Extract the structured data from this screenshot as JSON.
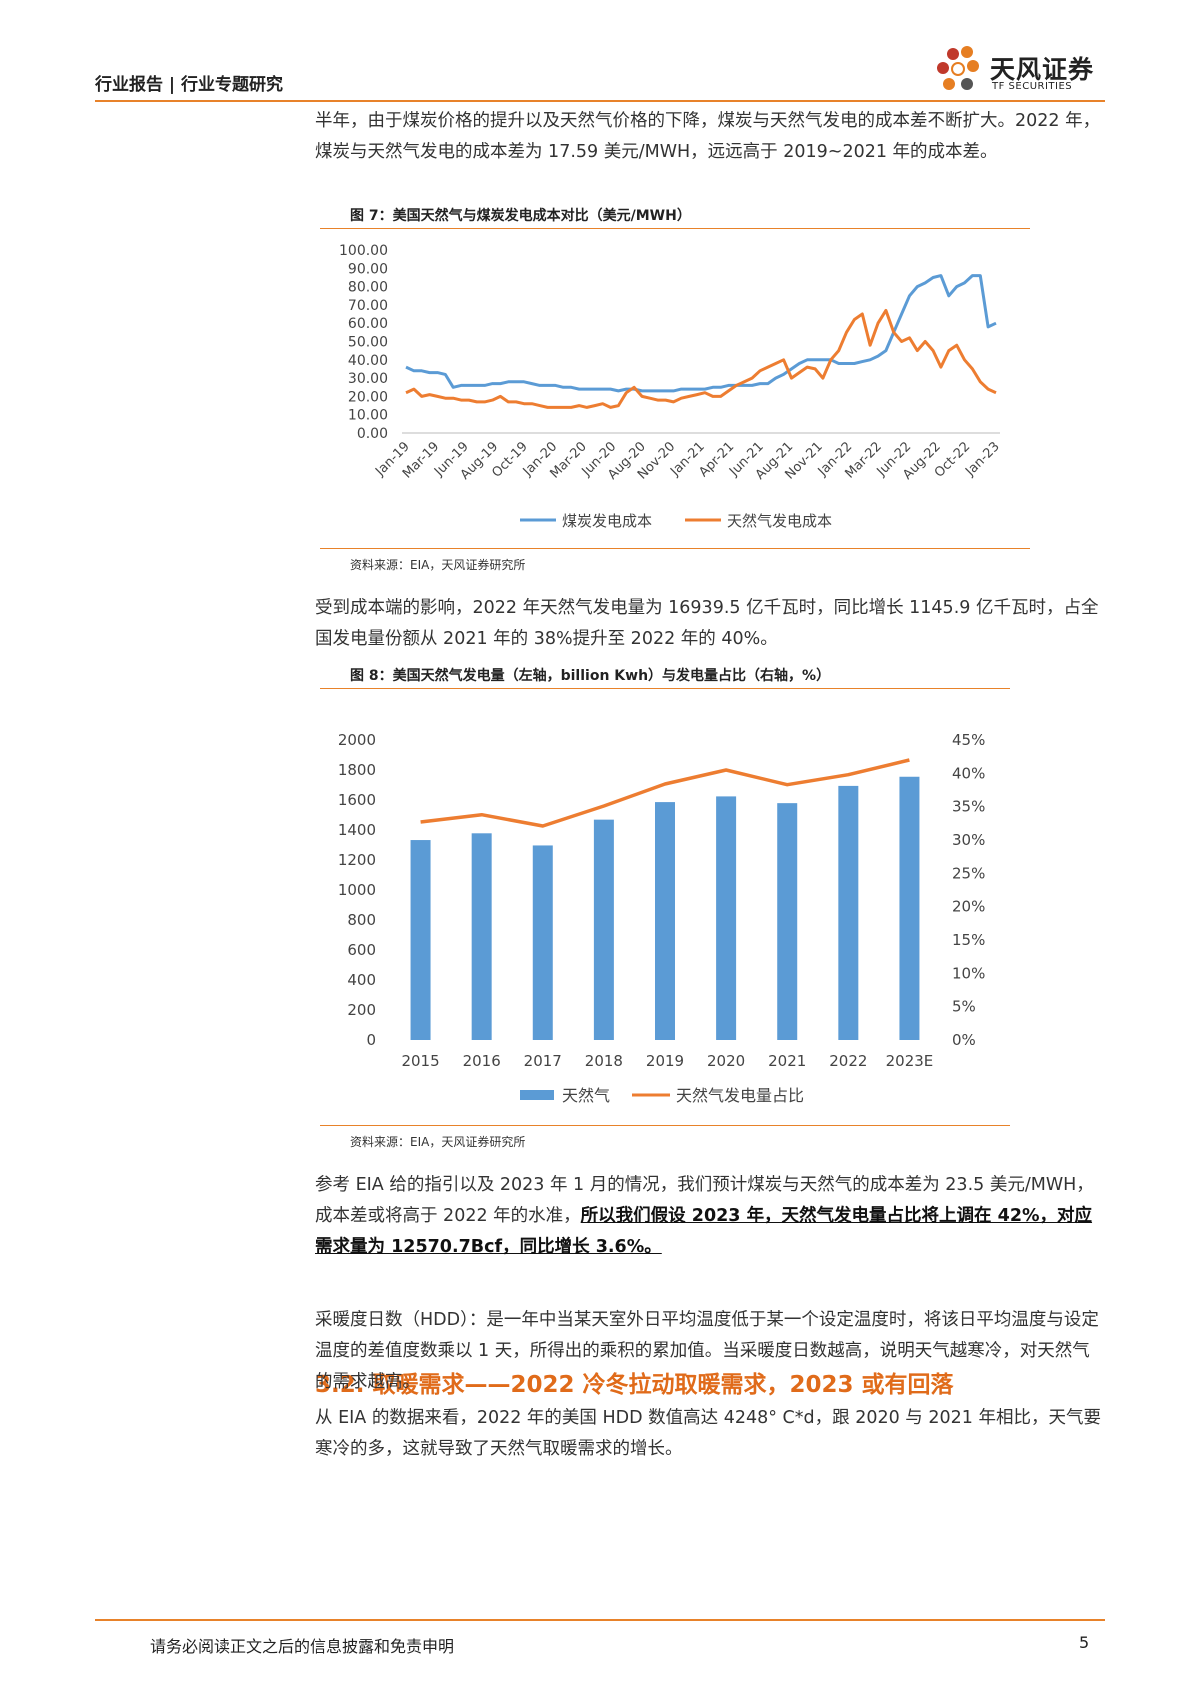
{
  "header": {
    "title": "行业报告 | 行业专题研究",
    "logo_cn": "天风证券",
    "logo_en": "TF SECURITIES"
  },
  "para1": "半年，由于煤炭价格的提升以及天然气价格的下降，煤炭与天然气发电的成本差不断扩大。2022 年，煤炭与天然气发电的成本差为 17.59 美元/MWH，远远高于 2019~2021 年的成本差。",
  "fig7": {
    "caption": "图 7：美国天然气与煤炭发电成本对比（美元/MWH）",
    "source": "资料来源：EIA，天风证券研究所"
  },
  "para2": "受到成本端的影响，2022 年天然气发电量为 16939.5 亿千瓦时，同比增长 1145.9 亿千瓦时，占全国发电量份额从 2021 年的 38%提升至 2022 年的 40%。",
  "fig8": {
    "caption": "图 8：美国天然气发电量（左轴，billion Kwh）与发电量占比（右轴，%）",
    "source": "资料来源：EIA，天风证券研究所"
  },
  "para3": {
    "normal": "参考 EIA 给的指引以及 2023 年 1 月的情况，我们预计煤炭与天然气的成本差为 23.5 美元/MWH，成本差或将高于 2022 年的水准，",
    "bold": "所以我们假设 2023 年，天然气发电量占比将上调在 42%，对应需求量为 12570.7Bcf，同比增长 3.6%。"
  },
  "section": {
    "heading": "3.2. 取暖需求——2022 冷冬拉动取暖需求，2023 或有回落"
  },
  "para4": "采暖度日数（HDD）：是一年中当某天室外日平均温度低于某一个设定温度时，将该日平均温度与设定温度的差值度数乘以 1 天，所得出的乘积的累加值。当采暖度日数越高，说明天气越寒冷，对天然气的需求越高。",
  "para5": "从 EIA 的数据来看，2022 年的美国 HDD 数值高达 4248° C*d，跟 2020 与 2021 年相比，天气要寒冷的多，这就导致了天然气取暖需求的增长。",
  "footer": {
    "disclaimer": "请务必阅读正文之后的信息披露和免责申明",
    "page": "5"
  },
  "chart_data": [
    {
      "type": "line",
      "x_ticks": [
        "Jan-19",
        "Mar-19",
        "Jun-19",
        "Aug-19",
        "Oct-19",
        "Jan-20",
        "Mar-20",
        "Jun-20",
        "Aug-20",
        "Nov-20",
        "Jan-21",
        "Apr-21",
        "Jun-21",
        "Aug-21",
        "Nov-21",
        "Jan-22",
        "Mar-22",
        "Jun-22",
        "Aug-22",
        "Oct-22",
        "Jan-23"
      ],
      "y_ticks": [
        "0.00",
        "10.00",
        "20.00",
        "30.00",
        "40.00",
        "50.00",
        "60.00",
        "70.00",
        "80.00",
        "90.00",
        "100.00"
      ],
      "ylim": [
        0,
        100
      ],
      "legend_position": "bottom",
      "colors": {
        "coal": "#5b9bd5",
        "gas": "#ed7d31"
      },
      "series": [
        {
          "name": "煤炭发电成本",
          "values": [
            36,
            34,
            34,
            33,
            33,
            32,
            25,
            26,
            26,
            26,
            26,
            27,
            27,
            28,
            28,
            28,
            27,
            26,
            26,
            26,
            25,
            25,
            24,
            24,
            24,
            24,
            24,
            23,
            24,
            24,
            23,
            23,
            23,
            23,
            23,
            24,
            24,
            24,
            24,
            25,
            25,
            26,
            26,
            26,
            26,
            27,
            27,
            30,
            32,
            35,
            38,
            40,
            40,
            40,
            40,
            38,
            38,
            38,
            39,
            40,
            42,
            45,
            55,
            65,
            75,
            80,
            82,
            85,
            86,
            75,
            80,
            82,
            86,
            86,
            58,
            60
          ]
        },
        {
          "name": "天然气发电成本",
          "values": [
            22,
            24,
            20,
            21,
            20,
            19,
            19,
            18,
            18,
            17,
            17,
            18,
            20,
            17,
            17,
            16,
            16,
            15,
            14,
            14,
            14,
            14,
            15,
            14,
            15,
            16,
            14,
            15,
            22,
            25,
            20,
            19,
            18,
            18,
            17,
            19,
            20,
            21,
            22,
            20,
            20,
            23,
            26,
            28,
            30,
            34,
            36,
            38,
            40,
            30,
            33,
            36,
            35,
            30,
            40,
            45,
            55,
            62,
            65,
            48,
            60,
            67,
            55,
            50,
            52,
            45,
            50,
            45,
            36,
            45,
            48,
            40,
            35,
            28,
            24,
            22
          ]
        }
      ]
    },
    {
      "type": "bar",
      "categories": [
        "2015",
        "2016",
        "2017",
        "2018",
        "2019",
        "2020",
        "2021",
        "2022",
        "2023E"
      ],
      "y_ticks_left": [
        "0",
        "200",
        "400",
        "600",
        "800",
        "1000",
        "1200",
        "1400",
        "1600",
        "1800",
        "2000"
      ],
      "y_ticks_right": [
        "0%",
        "5%",
        "10%",
        "15%",
        "20%",
        "25%",
        "30%",
        "35%",
        "40%",
        "45%"
      ],
      "ylim_left": [
        0,
        2000
      ],
      "ylim_right": [
        0,
        45
      ],
      "legend_position": "bottom",
      "colors": {
        "bar": "#5b9bd5",
        "line": "#ed7d31"
      },
      "series": [
        {
          "name": "天然气",
          "axis": "left",
          "values": [
            1333,
            1378,
            1297,
            1469,
            1586,
            1624,
            1579,
            1694,
            1755
          ]
        },
        {
          "name": "天然气发电量占比",
          "axis": "right",
          "values": [
            32.7,
            33.8,
            32.1,
            35.1,
            38.4,
            40.5,
            38.3,
            39.8,
            42.0
          ]
        }
      ]
    }
  ]
}
